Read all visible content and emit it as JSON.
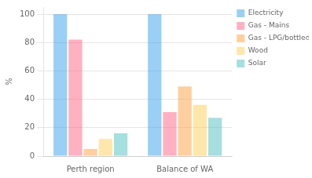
{
  "chart_data": {
    "type": "bar",
    "categories": [
      "Perth region",
      "Balance of WA"
    ],
    "series": [
      {
        "name": "Electricity",
        "values": [
          100,
          100
        ]
      },
      {
        "name": "Gas - Mains",
        "values": [
          82,
          31
        ]
      },
      {
        "name": "Gas - LPG/bottled gas",
        "values": [
          5,
          49
        ]
      },
      {
        "name": "Wood",
        "values": [
          12,
          36
        ]
      },
      {
        "name": "Solar",
        "values": [
          16,
          27
        ]
      }
    ],
    "ylabel": "%",
    "ylim": [
      0,
      105
    ],
    "yticks": [
      0,
      20,
      40,
      60,
      80,
      100
    ],
    "grid": true,
    "legend": "upper right"
  }
}
